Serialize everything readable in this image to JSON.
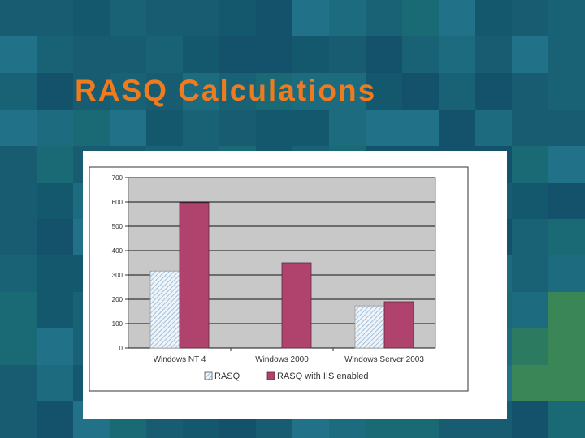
{
  "slide": {
    "title": "RASQ Calculations"
  },
  "colors": {
    "title": "#f07a1e",
    "plot_background": "#c8c8c8",
    "series_rasq": "#d8e6f2",
    "series_rasq_iis": "#b0426e"
  },
  "chart_data": {
    "type": "bar",
    "title": "",
    "xlabel": "",
    "ylabel": "",
    "categories": [
      "Windows NT 4",
      "Windows 2000",
      "Windows Server 2003"
    ],
    "series": [
      {
        "name": "RASQ",
        "values": [
          316,
          null,
          173
        ],
        "pattern": "hatched"
      },
      {
        "name": "RASQ with IIS enabled",
        "values": [
          597,
          350,
          190
        ],
        "pattern": "solid"
      }
    ],
    "ylim": [
      0,
      700
    ],
    "yticks": [
      0,
      100,
      200,
      300,
      400,
      500,
      600,
      700
    ],
    "ytick_labels": [
      "0",
      "100",
      "200",
      "300",
      "400",
      "500",
      "600",
      "700"
    ],
    "grid": true,
    "legend": "bottom"
  }
}
